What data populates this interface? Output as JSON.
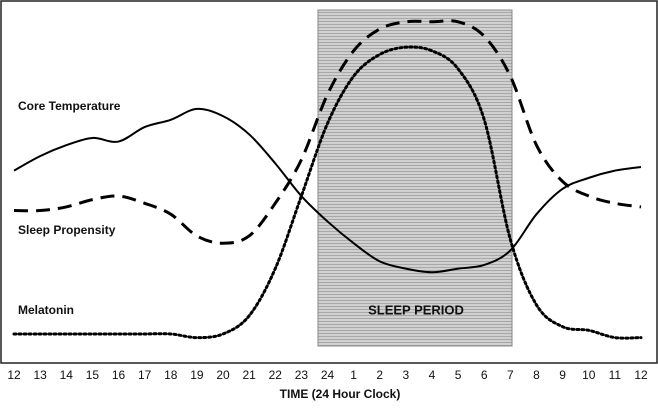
{
  "chart_data": {
    "type": "line",
    "x_label": "TIME  (24 Hour Clock)",
    "annotation": "SLEEP PERIOD",
    "categories": [
      "12",
      "13",
      "14",
      "15",
      "16",
      "17",
      "18",
      "19",
      "20",
      "21",
      "22",
      "23",
      "24",
      "1",
      "2",
      "3",
      "4",
      "5",
      "6",
      "7",
      "8",
      "9",
      "10",
      "11",
      "12"
    ],
    "ylim": [
      0,
      100
    ],
    "series": [
      {
        "name": "Core Temperature",
        "color": "#000000",
        "style": "solid",
        "values": [
          53,
          57,
          60,
          62,
          61,
          65,
          67,
          70,
          68,
          63,
          55,
          46,
          39,
          33,
          28,
          26,
          25,
          26,
          27,
          31,
          41,
          48,
          51,
          53,
          54
        ]
      },
      {
        "name": "Sleep Propensity",
        "color": "#000000",
        "style": "dashed",
        "values": [
          42,
          42,
          43,
          45,
          46,
          44,
          41,
          35,
          33,
          35,
          44,
          56,
          74,
          86,
          92,
          94,
          94,
          94,
          90,
          79,
          60,
          50,
          46,
          44,
          43
        ]
      },
      {
        "name": "Melatonin",
        "color": "#000000",
        "style": "dotted",
        "values": [
          8,
          8,
          8,
          8,
          8,
          8,
          8,
          7,
          8,
          13,
          26,
          46,
          66,
          79,
          85,
          87,
          86,
          81,
          67,
          34,
          16,
          10,
          9,
          7,
          7
        ]
      }
    ]
  }
}
